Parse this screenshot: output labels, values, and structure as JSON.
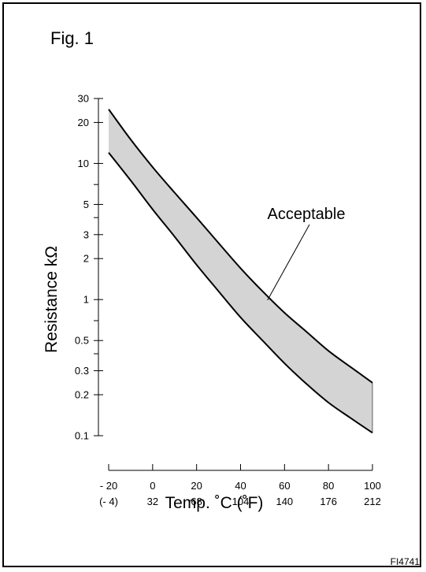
{
  "figure": {
    "label": "Fig. 1",
    "code": "FI4741"
  },
  "colors": {
    "ink": "#000000",
    "band_fill": "#d4d4d4"
  },
  "chart_data": {
    "type": "area",
    "title": "",
    "xlabel": "Temp. ˚C (˚F)",
    "ylabel": "Resistance kΩ",
    "y_scale": "log",
    "ylim": [
      0.1,
      30
    ],
    "xlim": [
      -20,
      100
    ],
    "y_tick_labels": [
      "30",
      "20",
      "10",
      "5",
      "3",
      "2",
      "1",
      "0.5",
      "0.3",
      "0.2",
      "0.1"
    ],
    "y_tick_values": [
      30,
      20,
      10,
      5,
      3,
      2,
      1,
      0.5,
      0.3,
      0.2,
      0.1
    ],
    "y_minor_ticks": [
      7,
      4,
      0.7,
      0.4
    ],
    "x_ticks_c": [
      {
        "value": -20,
        "label": "- 20"
      },
      {
        "value": 0,
        "label": "0"
      },
      {
        "value": 20,
        "label": "20"
      },
      {
        "value": 40,
        "label": "40"
      },
      {
        "value": 60,
        "label": "60"
      },
      {
        "value": 80,
        "label": "80"
      },
      {
        "value": 100,
        "label": "100"
      }
    ],
    "x_ticks_f": [
      {
        "value": -20,
        "label": "(- 4)"
      },
      {
        "value": 0,
        "label": "32"
      },
      {
        "value": 20,
        "label": "68"
      },
      {
        "value": 40,
        "label": "104"
      },
      {
        "value": 60,
        "label": "140"
      },
      {
        "value": 80,
        "label": "176"
      },
      {
        "value": 100,
        "label": "212"
      }
    ],
    "x": [
      -20,
      -10,
      0,
      10,
      20,
      30,
      40,
      50,
      60,
      70,
      80,
      90,
      100
    ],
    "series": [
      {
        "values": [
          25,
          15,
          9.4,
          6.1,
          4.0,
          2.6,
          1.7,
          1.15,
          0.8,
          0.58,
          0.42,
          0.32,
          0.245
        ]
      },
      {
        "values": [
          12,
          7.5,
          4.6,
          2.9,
          1.8,
          1.15,
          0.74,
          0.5,
          0.34,
          0.24,
          0.175,
          0.135,
          0.105
        ]
      }
    ],
    "band_label": "Acceptable",
    "annotation": {
      "text": "Acceptable",
      "points_to_x": 53
    }
  }
}
